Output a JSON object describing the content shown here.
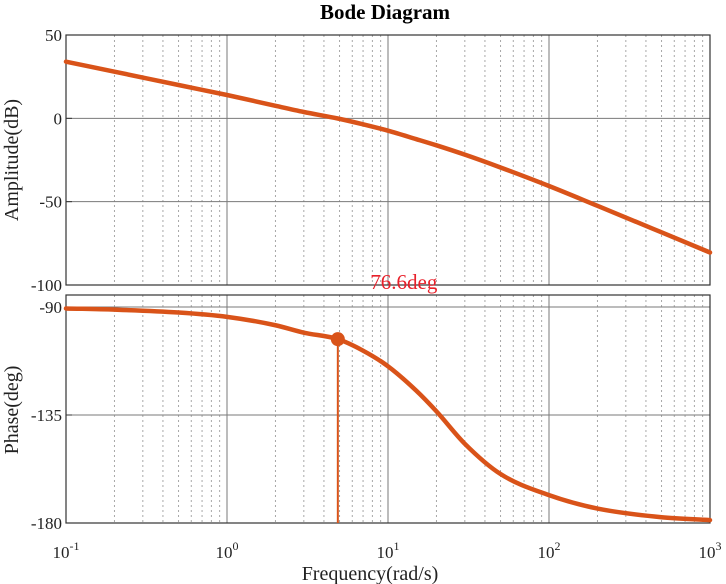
{
  "chart_data": {
    "type": "line",
    "title": "Bode Diagram",
    "xlabel": "Frequency(rad/s)",
    "x_scale": "log",
    "xlim": [
      0.1,
      1000
    ],
    "x_ticks": [
      {
        "base": "10",
        "exp": "-1"
      },
      {
        "base": "10",
        "exp": "0"
      },
      {
        "base": "10",
        "exp": "1"
      },
      {
        "base": "10",
        "exp": "2"
      },
      {
        "base": "10",
        "exp": "3"
      }
    ],
    "grid": true,
    "line_color": "#d95319",
    "panels": [
      {
        "name": "amplitude",
        "ylabel": "Amplitude(dB)",
        "ylim": [
          -100,
          50
        ],
        "yticks": [
          50,
          0,
          -50,
          -100
        ],
        "ytick_labels": [
          "50",
          "0",
          "-50",
          "-100"
        ],
        "x": [
          0.1,
          0.2,
          0.5,
          1,
          2,
          3,
          4.88,
          7,
          10,
          15,
          20,
          30,
          50,
          100,
          200,
          500,
          1000
        ],
        "values": [
          34,
          28,
          20,
          14,
          7.5,
          3.8,
          -0.1,
          -3.6,
          -7.4,
          -12.5,
          -16.2,
          -21.8,
          -29.5,
          -40.6,
          -52.5,
          -68.4,
          -80.5
        ]
      },
      {
        "name": "phase",
        "ylabel": "Phase(deg)",
        "ylim": [
          -180,
          -85
        ],
        "yticks": [
          -90,
          -135,
          -180
        ],
        "ytick_labels": [
          "-90",
          "-135",
          "-180"
        ],
        "x": [
          0.1,
          0.2,
          0.5,
          1,
          2,
          3,
          4.88,
          7,
          10,
          15,
          20,
          30,
          50,
          100,
          200,
          500,
          1000
        ],
        "values": [
          -90.6,
          -91.1,
          -92.3,
          -94.1,
          -97.6,
          -100.7,
          -103.4,
          -108.2,
          -114.7,
          -124.9,
          -133.5,
          -147.0,
          -159.6,
          -168.4,
          -174.0,
          -177.6,
          -178.8
        ],
        "marker": {
          "x": 4.88,
          "y": -103.4,
          "label": "76.6deg"
        }
      }
    ]
  }
}
